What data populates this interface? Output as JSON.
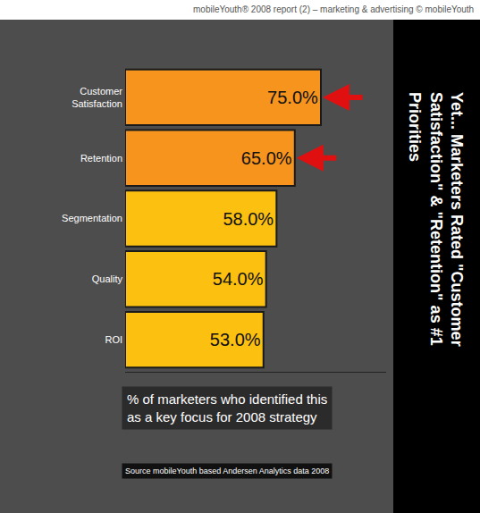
{
  "chart_data": {
    "type": "bar",
    "orientation": "horizontal",
    "title": "Yet... Marketers Rated \"Customer Satisfaction\" & \"Retention\" as #1 Priorities",
    "annotations": [
      "mobileYouth® 2008 report (2) – marketing & advertising © mobileYouth",
      "% of marketers who identified this as a key focus for 2008 strategy",
      "Source mobileYouth based Andersen Analytics data 2008"
    ],
    "categories": [
      "Customer Satisfaction",
      "Retention",
      "Segmentation",
      "Quality",
      "ROI"
    ],
    "values": [
      75,
      65,
      58,
      54,
      53
    ],
    "value_labels": [
      "75.0%",
      "65.0%",
      "58.0%",
      "54.0%",
      "53.0%"
    ],
    "colors": [
      "#f7941d",
      "#f7941d",
      "#fcc010",
      "#fcc010",
      "#fcc010"
    ],
    "xlim": [
      0,
      100
    ],
    "xticks": [],
    "grid": false,
    "data_labels": true,
    "tick_labels": "y"
  }
}
